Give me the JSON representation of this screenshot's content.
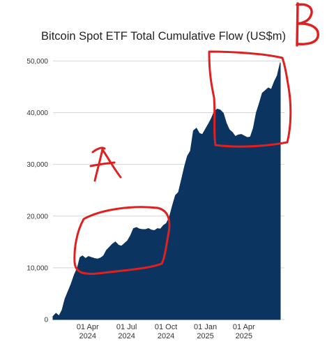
{
  "chart_data": {
    "type": "area",
    "title": "Bitcoin Spot ETF Total Cumulative Flow (US$m)",
    "xlabel": "",
    "ylabel": "",
    "ylim": [
      0,
      51000
    ],
    "grid": true,
    "y_ticks": [
      {
        "value": 0,
        "label": "0"
      },
      {
        "value": 10000,
        "label": "10,000"
      },
      {
        "value": 20000,
        "label": "20,000"
      },
      {
        "value": 30000,
        "label": "30,000"
      },
      {
        "value": 40000,
        "label": "40,000"
      },
      {
        "value": 50000,
        "label": "50,000"
      }
    ],
    "x_ticks": [
      {
        "date": "2024-04-01",
        "line1": "01 Apr",
        "line2": "2024"
      },
      {
        "date": "2024-07-01",
        "line1": "01 Jul",
        "line2": "2024"
      },
      {
        "date": "2024-10-01",
        "line1": "01 Oct",
        "line2": "2024"
      },
      {
        "date": "2025-01-01",
        "line1": "01 Jan",
        "line2": "2025"
      },
      {
        "date": "2025-04-01",
        "line1": "01 Apr",
        "line2": "2025"
      }
    ],
    "x_range": [
      "2024-01-11",
      "2025-06-25"
    ],
    "color": "#0b3560",
    "series": [
      {
        "x": [
          "2024-01-11",
          "2024-01-18",
          "2024-01-25",
          "2024-02-01",
          "2024-02-08",
          "2024-02-15",
          "2024-02-22",
          "2024-03-01",
          "2024-03-08",
          "2024-03-14",
          "2024-03-20",
          "2024-03-27",
          "2024-04-03",
          "2024-04-10",
          "2024-04-17",
          "2024-04-24",
          "2024-05-01",
          "2024-05-08",
          "2024-05-15",
          "2024-05-22",
          "2024-05-29",
          "2024-06-05",
          "2024-06-12",
          "2024-06-19",
          "2024-06-26",
          "2024-07-03",
          "2024-07-10",
          "2024-07-17",
          "2024-07-24",
          "2024-07-31",
          "2024-08-07",
          "2024-08-14",
          "2024-08-21",
          "2024-08-28",
          "2024-09-04",
          "2024-09-11",
          "2024-09-18",
          "2024-09-25",
          "2024-10-02",
          "2024-10-09",
          "2024-10-16",
          "2024-10-23",
          "2024-10-30",
          "2024-11-06",
          "2024-11-13",
          "2024-11-20",
          "2024-11-27",
          "2024-12-04",
          "2024-12-11",
          "2024-12-18",
          "2024-12-25",
          "2025-01-01",
          "2025-01-08",
          "2025-01-15",
          "2025-01-22",
          "2025-01-29",
          "2025-02-05",
          "2025-02-12",
          "2025-02-19",
          "2025-02-26",
          "2025-03-05",
          "2025-03-12",
          "2025-03-19",
          "2025-03-26",
          "2025-04-02",
          "2025-04-09",
          "2025-04-16",
          "2025-04-23",
          "2025-04-30",
          "2025-05-07",
          "2025-05-14",
          "2025-05-21",
          "2025-05-28",
          "2025-06-04",
          "2025-06-11",
          "2025-06-18",
          "2025-06-25"
        ],
        "values": [
          600,
          1200,
          700,
          1800,
          4000,
          5400,
          6800,
          8700,
          10000,
          12000,
          12300,
          11800,
          12200,
          12000,
          11800,
          11700,
          11900,
          12300,
          13400,
          14000,
          14600,
          15000,
          14400,
          14200,
          14700,
          15200,
          16200,
          17600,
          17800,
          17500,
          17400,
          17400,
          17600,
          17300,
          17200,
          17600,
          17500,
          18200,
          18600,
          19800,
          22000,
          24000,
          24600,
          27000,
          29500,
          31600,
          32600,
          36500,
          37000,
          36000,
          35800,
          36800,
          37800,
          38900,
          40300,
          40700,
          40500,
          39900,
          38000,
          36700,
          36200,
          35400,
          35700,
          35800,
          35500,
          35200,
          35300,
          37000,
          40000,
          41800,
          43800,
          44300,
          44800,
          44500,
          46000,
          47200,
          49700
        ]
      }
    ]
  }
}
